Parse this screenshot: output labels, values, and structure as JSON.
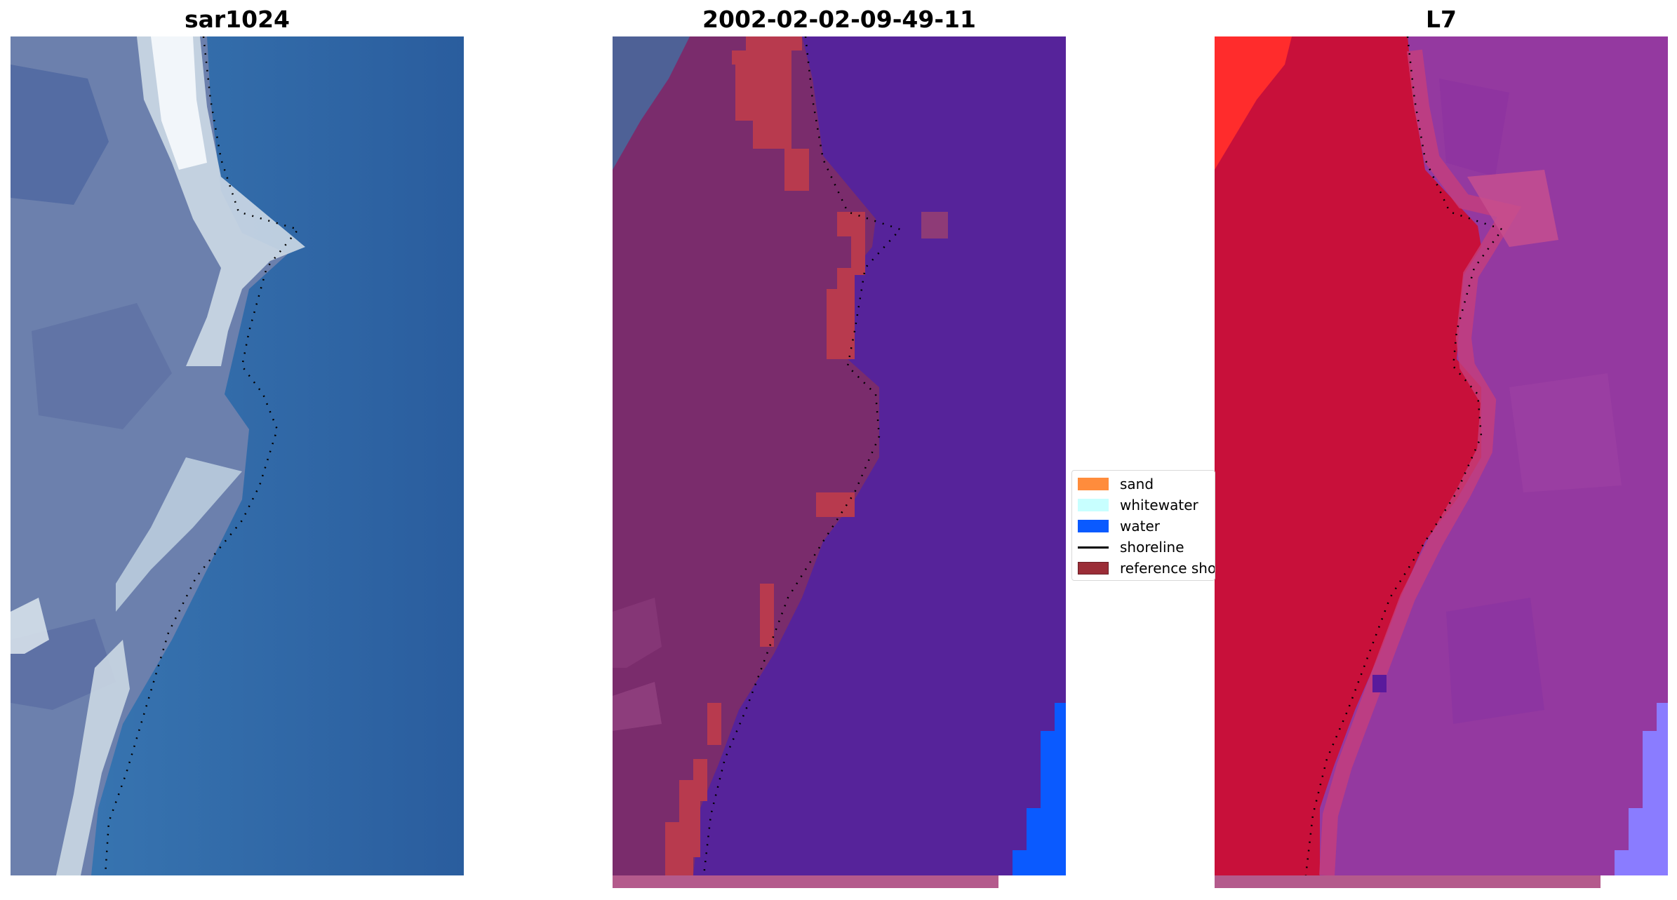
{
  "panels": [
    {
      "title": "sar1024"
    },
    {
      "title": "2002-02-02-09-49-11"
    },
    {
      "title": "L7"
    }
  ],
  "legend": [
    {
      "label": "sand",
      "color": "#ff8c3c",
      "kind": "patch"
    },
    {
      "label": "whitewater",
      "color": "#c8ffff",
      "kind": "patch"
    },
    {
      "label": "water",
      "color": "#0a5aff",
      "kind": "patch"
    },
    {
      "label": "shoreline",
      "color": "#000000",
      "kind": "line"
    },
    {
      "label": "reference shoreline",
      "color": "#9b2d37",
      "kind": "patch"
    }
  ],
  "colors": {
    "rgb_sea": "#2f64a6",
    "rgb_land": "#6b7fae",
    "rgb_surf": "#d9e6ee",
    "class_water_overlay": "#56239a",
    "class_land": "#7c2c6a",
    "class_reference": "#b8354a",
    "class_water": "#0a5aff",
    "false_color_land": "#c8103a",
    "false_color_sea": "#9439a0",
    "bottom_strip": "#b45a8c"
  }
}
